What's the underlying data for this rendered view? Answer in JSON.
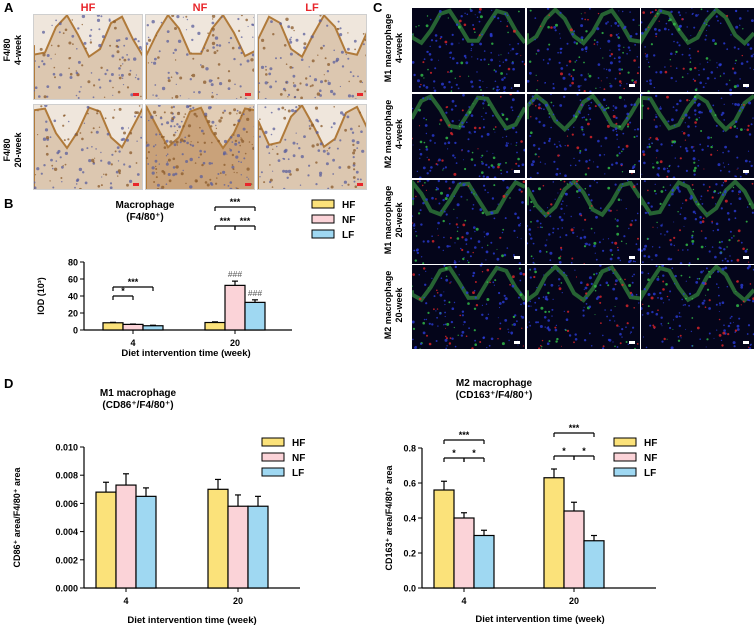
{
  "panels": {
    "A": {
      "letter": "A",
      "columns": [
        "HF",
        "NF",
        "LF"
      ],
      "rows": [
        {
          "line1": "F4/80",
          "line2": "4-week"
        },
        {
          "line1": "F4/80",
          "line2": "20-week"
        }
      ],
      "header_color": "#e8262b"
    },
    "B": {
      "letter": "B"
    },
    "C": {
      "letter": "C",
      "rows": [
        {
          "line1": "M1 macrophage",
          "line2": "4-week"
        },
        {
          "line1": "M2 macrophage",
          "line2": "4-week"
        },
        {
          "line1": "M1 macrophage",
          "line2": "20-week"
        },
        {
          "line1": "M2 macrophage",
          "line2": "20-week"
        }
      ]
    },
    "D": {
      "letter": "D"
    }
  },
  "colors": {
    "HF": "#fbe27a",
    "NF": "#fbd3d8",
    "LF": "#9fd8f2"
  },
  "chart_data": [
    {
      "id": "B",
      "type": "bar",
      "title": "Macrophage",
      "subtitle": "(F4/80⁺)",
      "xlabel": "Diet intervention time (week)",
      "ylabel": "IOD (10³)",
      "categories": [
        "4",
        "20"
      ],
      "yticks": [
        "0",
        "20",
        "40",
        "60",
        "80"
      ],
      "ylim": [
        0,
        80
      ],
      "series": [
        {
          "name": "HF",
          "values": [
            8.5,
            8.8
          ],
          "errors": [
            0.5,
            0.8
          ]
        },
        {
          "name": "NF",
          "values": [
            6.6,
            52.5
          ],
          "errors": [
            0.4,
            5.0
          ]
        },
        {
          "name": "LF",
          "values": [
            5.0,
            32.5
          ],
          "errors": [
            0.6,
            3.0
          ]
        }
      ],
      "legend": [
        "HF",
        "NF",
        "LF"
      ],
      "legend_position": "top-right",
      "annotations": {
        "sig_4_hf_lf": "***",
        "sig_4_hf_nf": "*",
        "sig_20_hf_lf": "***",
        "sig_20_hf_nf": "***",
        "sig_20_nf_lf": "***",
        "hash_20_nf": "###",
        "hash_20_lf": "###"
      }
    },
    {
      "id": "D-left",
      "type": "bar",
      "title": "M1 macrophage",
      "subtitle": "(CD86⁺/F4/80⁺)",
      "xlabel": "Diet intervention time (week)",
      "ylabel": "CD86⁺ area/F4/80⁺ area",
      "categories": [
        "4",
        "20"
      ],
      "yticks": [
        "0.000",
        "0.002",
        "0.004",
        "0.006",
        "0.008",
        "0.010"
      ],
      "ylim": [
        0,
        0.01
      ],
      "series": [
        {
          "name": "HF",
          "values": [
            0.0068,
            0.007
          ],
          "errors": [
            0.0007,
            0.0007
          ]
        },
        {
          "name": "NF",
          "values": [
            0.0073,
            0.0058
          ],
          "errors": [
            0.0008,
            0.0008
          ]
        },
        {
          "name": "LF",
          "values": [
            0.0065,
            0.0058
          ],
          "errors": [
            0.0006,
            0.0007
          ]
        }
      ],
      "legend": [
        "HF",
        "NF",
        "LF"
      ],
      "legend_position": "top-right"
    },
    {
      "id": "D-right",
      "type": "bar",
      "title": "M2 macrophage",
      "subtitle": "(CD163⁺/F4/80⁺)",
      "xlabel": "Diet intervention time (week)",
      "ylabel": "CD163⁺ area/F4/80⁺ area",
      "categories": [
        "4",
        "20"
      ],
      "yticks": [
        "0.0",
        "0.2",
        "0.4",
        "0.6",
        "0.8"
      ],
      "ylim": [
        0,
        0.8
      ],
      "series": [
        {
          "name": "HF",
          "values": [
            0.56,
            0.63
          ],
          "errors": [
            0.05,
            0.05
          ]
        },
        {
          "name": "NF",
          "values": [
            0.4,
            0.44
          ],
          "errors": [
            0.03,
            0.05
          ]
        },
        {
          "name": "LF",
          "values": [
            0.3,
            0.27
          ],
          "errors": [
            0.03,
            0.03
          ]
        }
      ],
      "legend": [
        "HF",
        "NF",
        "LF"
      ],
      "legend_position": "top-right",
      "annotations": {
        "sig_4_hf_lf": "***",
        "sig_4_hf_nf": "*",
        "sig_4_nf_lf": "*",
        "sig_20_hf_lf": "***",
        "sig_20_hf_nf": "*",
        "sig_20_nf_lf": "*"
      }
    }
  ]
}
